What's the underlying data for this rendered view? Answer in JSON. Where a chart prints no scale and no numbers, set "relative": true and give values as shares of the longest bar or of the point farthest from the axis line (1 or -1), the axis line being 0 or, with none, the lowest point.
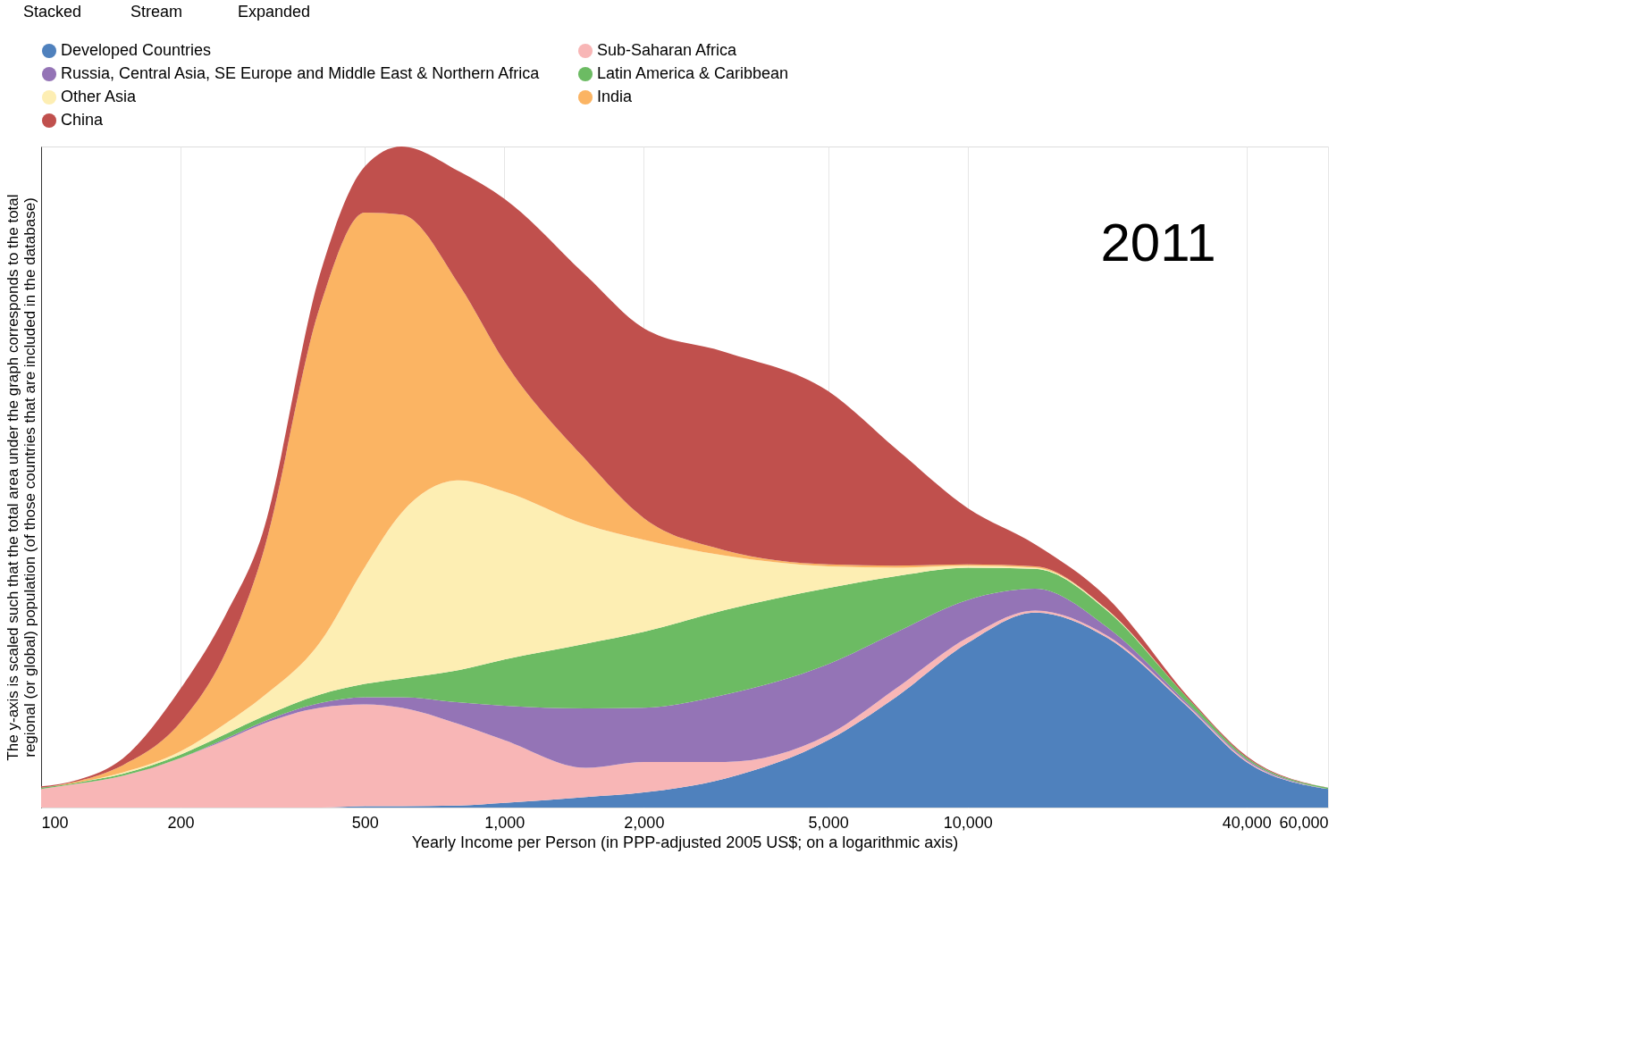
{
  "chart_data": {
    "type": "area",
    "stacked": true,
    "relative": true,
    "xlabel": "Yearly Income per Person (in PPP-adjusted 2005 US$; on a logarithmic axis)",
    "ylabel": "The y-axis is scaled such that the total area under the graph corresponds to the total regional (or global) population (of those countries that are included in the database)",
    "annotations": [
      "Stacked",
      "Stream",
      "Expanded",
      "2011"
    ],
    "x": [
      100,
      120,
      150,
      200,
      250,
      300,
      400,
      500,
      600,
      800,
      1000,
      1500,
      2000,
      3000,
      5000,
      7000,
      10000,
      14000,
      20000,
      30000,
      40000,
      60000
    ],
    "log": "x",
    "grid": "x",
    "legend": "top",
    "xlim": [
      100,
      60000
    ],
    "xticks": [
      100,
      200,
      500,
      {
        "value": 1000,
        "label": "1,000"
      },
      {
        "value": 2000,
        "label": "2,000"
      },
      {
        "value": 5000,
        "label": "5,000"
      },
      {
        "value": 10000,
        "label": "10,000"
      },
      {
        "value": 40000,
        "label": "40,000"
      },
      {
        "value": 60000,
        "label": "60,000"
      }
    ],
    "series": [
      {
        "name": "Developed Countries",
        "color": "#4f81bd",
        "values": [
          0,
          0,
          0,
          0,
          0,
          0,
          0,
          0.002,
          0.002,
          0.003,
          0.007,
          0.016,
          0.023,
          0.044,
          0.102,
          0.167,
          0.249,
          0.295,
          0.257,
          0.151,
          0.069,
          0.028
        ]
      },
      {
        "name": "Sub-Saharan Africa",
        "color": "#f8b6b6",
        "values": [
          0.028,
          0.036,
          0.048,
          0.075,
          0.102,
          0.126,
          0.151,
          0.154,
          0.149,
          0.123,
          0.095,
          0.044,
          0.046,
          0.025,
          0.008,
          0.013,
          0.008,
          0.003,
          0.003,
          0.002,
          0.002,
          0
        ]
      },
      {
        "name": "Russia, Central Asia, SE Europe and Middle East & Northern Africa",
        "color": "#9474b6",
        "values": [
          0,
          0,
          0,
          0,
          0.002,
          0.003,
          0.007,
          0.011,
          0.016,
          0.033,
          0.052,
          0.09,
          0.082,
          0.102,
          0.107,
          0.085,
          0.057,
          0.033,
          0.013,
          0.003,
          0.002,
          0
        ]
      },
      {
        "name": "Latin America & Caribbean",
        "color": "#6cbb63",
        "values": [
          0.002,
          0.002,
          0.003,
          0.005,
          0.007,
          0.008,
          0.013,
          0.02,
          0.028,
          0.049,
          0.07,
          0.098,
          0.115,
          0.128,
          0.115,
          0.085,
          0.049,
          0.03,
          0.025,
          0.008,
          0.003,
          0.002
        ]
      },
      {
        "name": "Other Asia",
        "color": "#fdeeb3",
        "values": [
          0,
          0,
          0.002,
          0.005,
          0.016,
          0.03,
          0.079,
          0.177,
          0.251,
          0.287,
          0.254,
          0.18,
          0.139,
          0.082,
          0.033,
          0.013,
          0.003,
          0.002,
          0.002,
          0,
          0,
          0
        ]
      },
      {
        "name": "India",
        "color": "#fbb463",
        "values": [
          0,
          0.002,
          0.011,
          0.044,
          0.107,
          0.213,
          0.508,
          0.536,
          0.451,
          0.295,
          0.197,
          0.098,
          0.033,
          0.008,
          0.003,
          0.003,
          0.002,
          0.002,
          0,
          0,
          0,
          0
        ]
      },
      {
        "name": "China",
        "color": "#c0504d",
        "values": [
          0.002,
          0.002,
          0.01,
          0.051,
          0.057,
          0.033,
          0.049,
          0.07,
          0.103,
          0.172,
          0.246,
          0.279,
          0.287,
          0.3,
          0.262,
          0.177,
          0.085,
          0.033,
          0.018,
          0.003,
          0.002,
          0
        ]
      }
    ]
  }
}
